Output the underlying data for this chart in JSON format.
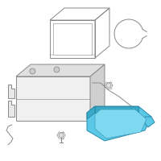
{
  "bg_color": "#ffffff",
  "tray_color": "#5bc8e8",
  "tray_outline": "#2a8aaa",
  "line_color": "#888888",
  "line_width": 0.7,
  "fig_width": 2.0,
  "fig_height": 2.0,
  "dpi": 100
}
